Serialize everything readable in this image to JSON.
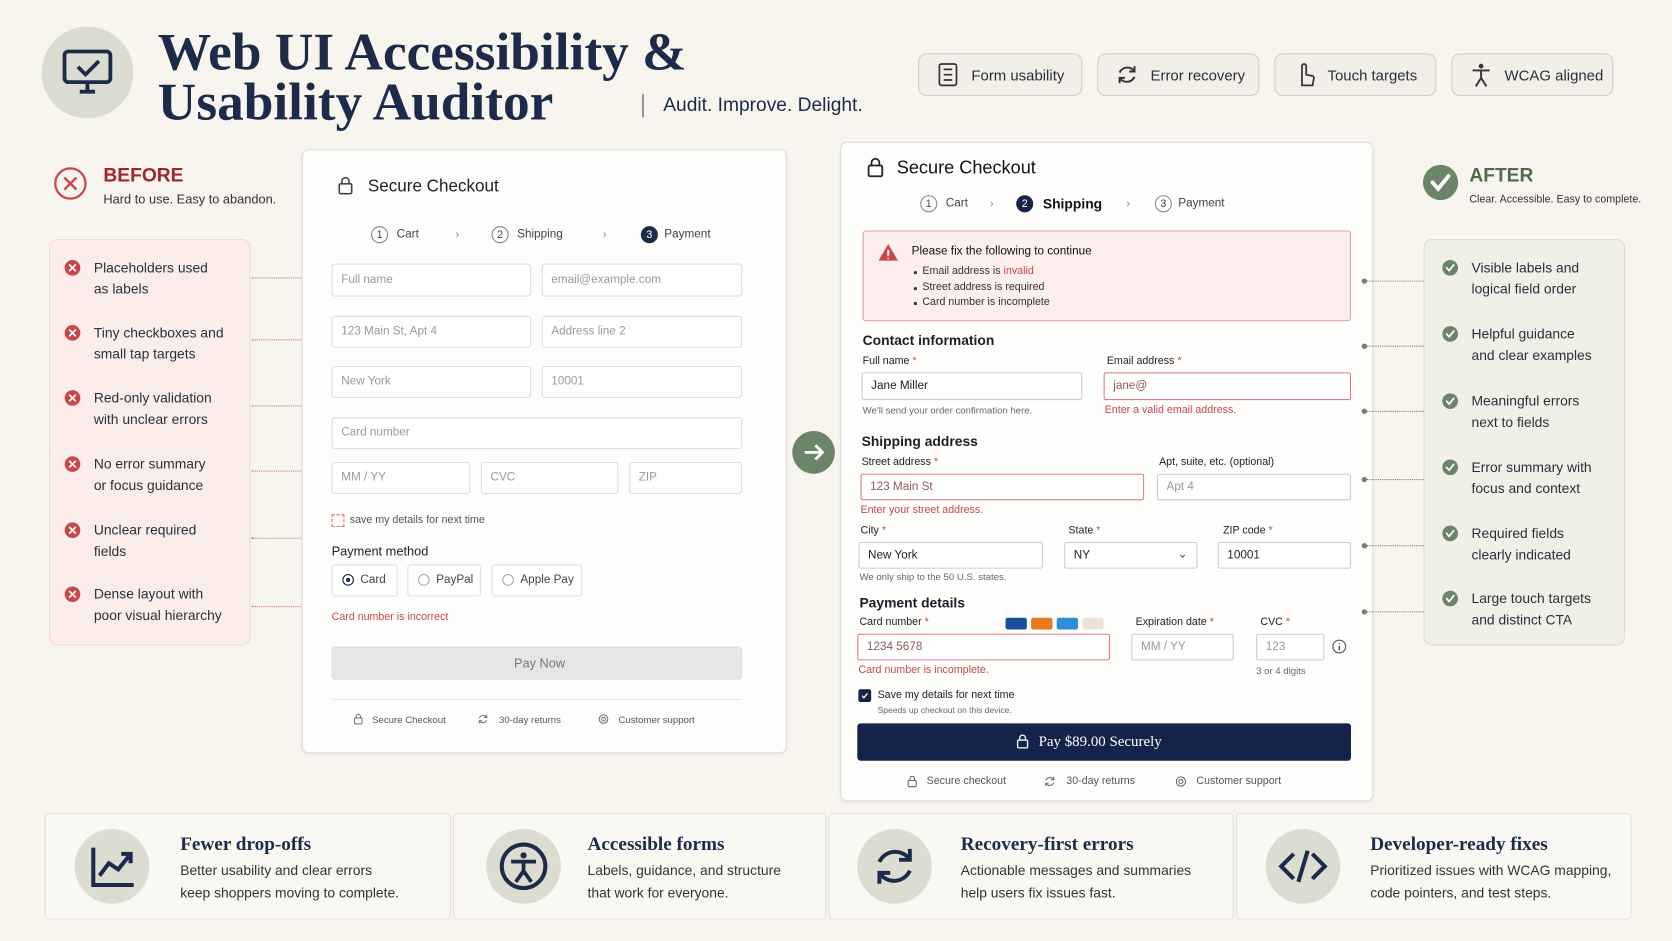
{
  "header": {
    "title_line1": "Web UI Accessibility &",
    "title_line2": "Usability Auditor",
    "tagline": "Audit. Improve. Delight.",
    "badges": [
      "Form usability",
      "Error recovery",
      "Touch targets",
      "WCAG aligned"
    ]
  },
  "before": {
    "heading": "BEFORE",
    "subheading": "Hard to use. Easy to abandon.",
    "issues": [
      [
        "Placeholders used",
        "as labels"
      ],
      [
        "Tiny checkboxes and",
        "small tap targets"
      ],
      [
        "Red-only validation",
        "with unclear errors"
      ],
      [
        "No error summary",
        "or focus guidance"
      ],
      [
        "Unclear required",
        "fields"
      ],
      [
        "Dense layout with",
        "poor visual hierarchy"
      ]
    ]
  },
  "before_form": {
    "title": "Secure Checkout",
    "steps": [
      {
        "number": 1,
        "label": "Cart"
      },
      {
        "number": 2,
        "label": "Shipping"
      },
      {
        "number": 3,
        "label": "Payment"
      }
    ],
    "placeholders": [
      "Full name",
      "email@example.com",
      "123 Main St, Apt 4",
      "Address line 2",
      "New York",
      "10001",
      "Card number",
      "MM / YY",
      "CVC",
      "ZIP"
    ],
    "checkbox": "save my details for next time",
    "payment_method": "Payment method",
    "options": [
      "Card",
      "PayPal",
      "Apple Pay"
    ],
    "error": "Card number is incorrect",
    "button": "Pay Now",
    "footer": [
      "Secure Checkout",
      "30-day returns",
      "Customer support"
    ]
  },
  "after_form": {
    "title": "Secure Checkout",
    "steps": [
      {
        "number": 1,
        "label": "Cart"
      },
      {
        "number": 2,
        "label": "Shipping"
      },
      {
        "number": 3,
        "label": "Payment"
      }
    ],
    "required_marker": "*",
    "summary": {
      "title": "Please fix the following to continue",
      "items": [
        {
          "text": "Email address is",
          "emphasis": "invalid"
        },
        {
          "text": "Street address is required"
        },
        {
          "text": "Card number is incomplete"
        }
      ]
    },
    "contact": {
      "heading": "Contact information",
      "full_name": {
        "label": "Full name",
        "value": "Jane Miller",
        "hint": "We'll send your order confirmation here."
      },
      "email": {
        "label": "Email address",
        "value": "jane@",
        "error": "Enter a valid email address."
      }
    },
    "shipping": {
      "heading": "Shipping address",
      "street": {
        "label": "Street address",
        "value": "123 Main St",
        "error": "Enter your street address."
      },
      "apt": {
        "label": "Apt, suite, etc. (optional)",
        "placeholder": "Apt 4"
      },
      "city": {
        "label": "City",
        "value": "New York"
      },
      "state": {
        "label": "State",
        "value": "NY"
      },
      "zip": {
        "label": "ZIP code",
        "value": "10001"
      },
      "hint": "We only ship to the 50 U.S. states."
    },
    "payment": {
      "heading": "Payment details",
      "card": {
        "label": "Card number",
        "value": "1234 5678",
        "error": "Card number is incomplete."
      },
      "expiry": {
        "label": "Expiration date",
        "placeholder": "MM / YY"
      },
      "cvc": {
        "label": "CVC",
        "placeholder": "123",
        "hint": "3 or 4 digits"
      }
    },
    "checkbox": {
      "label": "Save my details for next time",
      "hint": "Speeds up checkout on this device."
    },
    "button": "Pay $89.00 Securely",
    "footer": [
      "Secure checkout",
      "30-day returns",
      "Customer support"
    ]
  },
  "after": {
    "heading": "AFTER",
    "subheading": "Clear. Accessible. Easy to complete.",
    "improvements": [
      [
        "Visible labels and",
        "logical field order"
      ],
      [
        "Helpful guidance",
        "and clear examples"
      ],
      [
        "Meaningful errors",
        "next to fields"
      ],
      [
        "Error summary with",
        "focus and context"
      ],
      [
        "Required fields",
        "clearly indicated"
      ],
      [
        "Large touch targets",
        "and distinct CTA"
      ]
    ]
  },
  "benefits": [
    {
      "title": "Fewer drop-offs",
      "lines": [
        "Better usability and clear errors",
        "keep shoppers moving to complete."
      ]
    },
    {
      "title": "Accessible forms",
      "lines": [
        "Labels, guidance, and structure",
        "that work for everyone."
      ]
    },
    {
      "title": "Recovery-first errors",
      "lines": [
        "Actionable messages and summaries",
        "help users fix issues fast."
      ]
    },
    {
      "title": "Developer-ready fixes",
      "lines": [
        "Prioritized issues with WCAG mapping,",
        "code pointers, and test steps."
      ]
    }
  ]
}
